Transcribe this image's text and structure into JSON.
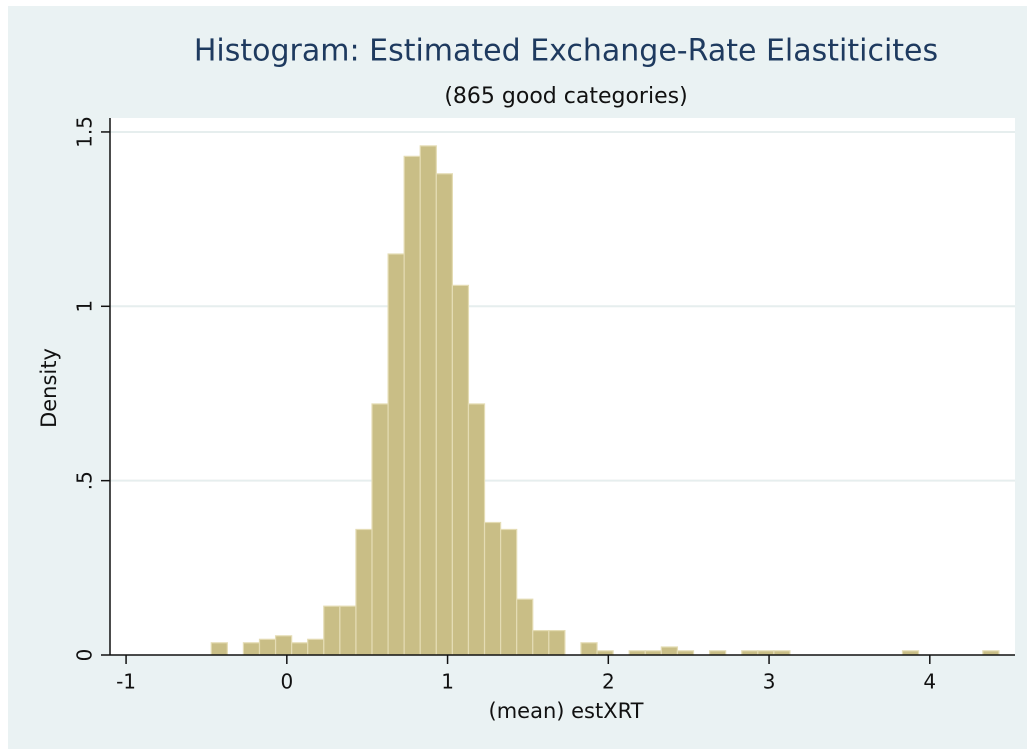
{
  "chart_data": {
    "type": "histogram",
    "title": "Histogram: Estimated Exchange-Rate Elastiticites",
    "subtitle": "(865 good categories)",
    "xlabel": "(mean) estXRT",
    "ylabel": "Density",
    "bins": [
      -0.47,
      -0.37,
      -0.27,
      -0.17,
      -0.07,
      0.03,
      0.13,
      0.23,
      0.33,
      0.43,
      0.53,
      0.63,
      0.73,
      0.83,
      0.93,
      1.03,
      1.13,
      1.23,
      1.33,
      1.43,
      1.53,
      1.63,
      1.73,
      1.83,
      1.93,
      2.03,
      2.13,
      2.23,
      2.33,
      2.43,
      2.53,
      2.63,
      2.73,
      2.83,
      2.93,
      3.03,
      3.13,
      3.23,
      3.33,
      3.43,
      3.53,
      3.63,
      3.73,
      3.83,
      3.93,
      4.03,
      4.13,
      4.23,
      4.33,
      4.43
    ],
    "counts": [
      0.035,
      0,
      0.035,
      0.045,
      0.055,
      0.035,
      0.045,
      0.14,
      0.14,
      0.36,
      0.72,
      1.15,
      1.43,
      1.46,
      1.38,
      1.06,
      0.72,
      0.38,
      0.36,
      0.16,
      0.07,
      0.07,
      0,
      0.035,
      0.012,
      0,
      0.012,
      0.012,
      0.023,
      0.012,
      0,
      0.012,
      0,
      0.012,
      0.012,
      0.012,
      0,
      0,
      0,
      0,
      0,
      0,
      0,
      0.012,
      0,
      0,
      0,
      0,
      0.012
    ],
    "color": "#c9be86",
    "xlim": [
      -1.1,
      4.53
    ],
    "ylim": [
      0,
      1.54
    ],
    "xticks": [
      -1,
      0,
      1,
      2,
      3,
      4
    ],
    "yticks": [
      0,
      {
        "value": 0.5,
        "label": ".5"
      },
      1,
      1.5
    ],
    "grid": true
  }
}
